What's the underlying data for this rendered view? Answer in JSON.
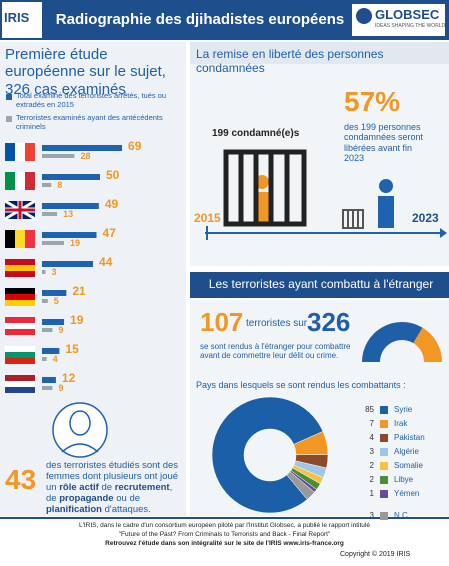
{
  "header": {
    "logo_left": "IRIS",
    "title": "Radiographie des djihadistes européens",
    "logo_right": "GLOBSEC",
    "logo_right_tagline": "IDEAS SHAPING THE WORLD"
  },
  "left": {
    "title": "Première étude européenne sur le sujet, 326 cas examinés",
    "women": {
      "value": "43",
      "text": [
        "des terroristes étudiés sont des femmes dont plusieurs ont joué un ",
        "rôle actif",
        " de ",
        "recrutement",
        ", de ",
        "propagande",
        " ou de ",
        "planification",
        " d'attaques."
      ]
    }
  },
  "release": {
    "title": "La remise en liberté des personnes condamnées",
    "percent": "57%",
    "percent_text": "des 199 personnes condamnées seront libérées avant fin 2023",
    "count_label": "199 condamné(e)s",
    "start_year": "2015",
    "end_year": "2023"
  },
  "fighters": {
    "title": "Les terroristes ayant combattu à l'étranger",
    "of": "terroristes sur",
    "text": "se sont rendus à l'étranger pour combattre avant de commettre leur délit ou crime.",
    "countries_title": "Pays dans lesquels se sont rendus les combattants :"
  },
  "footer": {
    "line1": "L'IRIS, dans le cadre d'un consortium européen piloté par l'Institut Globsec, a publié le rapport intitulé",
    "line2": "\"Future of the Past? From Criminals to Terrorists and Back - Final Report\"",
    "line3": "Retrouvez l'étude dans son intégralité sur le site de l'IRIS www.iris-france.org",
    "copyright": "Copyright © 2019 IRIS"
  },
  "chart_data": [
    {
      "type": "bar",
      "categories": [
        null,
        null,
        null,
        null,
        null,
        null,
        null,
        null,
        null
      ],
      "series": [
        {
          "name": "Total examiné des terroristes arrêtés, tués ou extradés en 2015",
          "color": "#1f63b0",
          "values": [
            69,
            50,
            49,
            47,
            44,
            21,
            19,
            15,
            12
          ]
        },
        {
          "name": "Terroristes examinés ayant des antécédents criminels",
          "color": "#9aa5ad",
          "values": [
            28,
            8,
            13,
            19,
            3,
            5,
            9,
            4,
            9
          ]
        }
      ]
    },
    {
      "type": "half-donut",
      "values": [
        107,
        326
      ],
      "colors": [
        "#f29624",
        "#1f5fa8"
      ]
    },
    {
      "type": "pie",
      "categories": [
        "Syrie",
        "Irak",
        "Pakistan",
        "Algérie",
        "Somalie",
        "Libye",
        "Yémen",
        "N.C."
      ],
      "values": [
        85,
        7,
        4,
        3,
        2,
        2,
        1,
        3
      ],
      "colors": [
        "#1a5fa8",
        "#f29624",
        "#8b4a2b",
        "#9fc5e8",
        "#f5c242",
        "#4a8c3a",
        "#6a4a9c",
        "#999999"
      ]
    }
  ]
}
